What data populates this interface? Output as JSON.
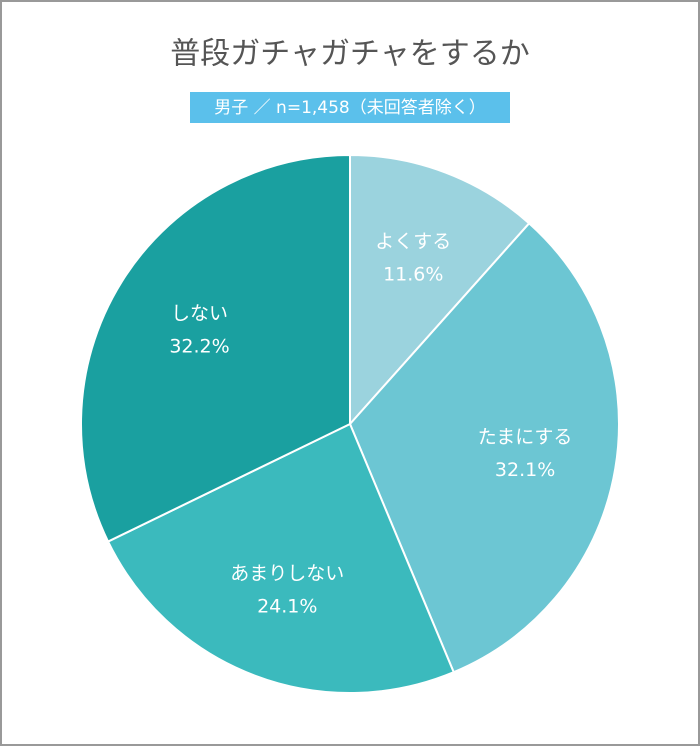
{
  "chart_data": {
    "type": "pie",
    "title": "普段ガチャガチャをするか",
    "subtitle": "男子 ／ n=1,458（未回答者除く）",
    "categories": [
      "よくする",
      "たまにする",
      "あまりしない",
      "しない"
    ],
    "values": [
      11.6,
      32.1,
      24.1,
      32.2
    ],
    "value_labels": [
      "11.6%",
      "32.1%",
      "24.1%",
      "32.2%"
    ],
    "colors": [
      "#9bd3de",
      "#6cc6d3",
      "#3bbabd",
      "#1aa0a0"
    ]
  }
}
